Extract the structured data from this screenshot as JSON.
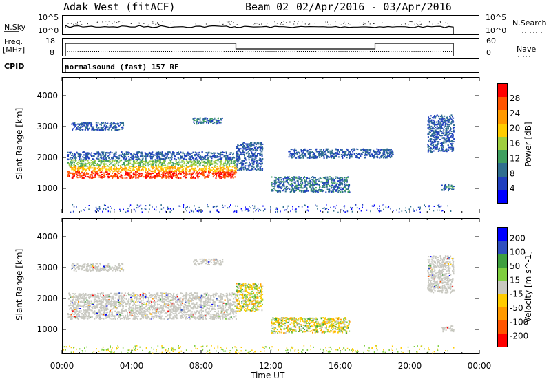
{
  "header": {
    "station": "Adak West (fitACF)",
    "beam": "Beam 02",
    "dates": "02/Apr/2016 - 03/Apr/2016"
  },
  "strip_labels": {
    "nsky": "N.Sky",
    "nsky_top": "10^5",
    "nsky_bottom": "10^0",
    "nsearch": "N.Search",
    "nsearch_top": "10^5",
    "nsearch_bottom": "10^0",
    "freq": "Freq.",
    "freq_unit": "[MHz]",
    "freq_top": "18",
    "freq_bottom": "8",
    "nave": "Nave",
    "nave_top": "60",
    "nave_bottom": "0",
    "cpid": "CPID",
    "cpid_text": "normalsound (fast) 157 RF"
  },
  "colors": {
    "power": [
      "#0000ff",
      "#1f3fbf",
      "#2f6f8f",
      "#3f9f5f",
      "#9fcf3f",
      "#ffcc00",
      "#ff9900",
      "#ff5500",
      "#ff0000"
    ],
    "velocity": [
      "#0000ff",
      "#2f4fbf",
      "#3f9f3f",
      "#7fcf3f",
      "#c8c8c0",
      "#ffcc00",
      "#ff9900",
      "#ff5500",
      "#ff0000"
    ]
  },
  "chart_data": [
    {
      "type": "heatmap",
      "name": "power",
      "ylabel": "Slant Range [km]",
      "yticks": [
        "1000",
        "2000",
        "3000",
        "4000"
      ],
      "ylim": [
        200,
        4600
      ],
      "xlim": [
        "00:00",
        "24:00"
      ],
      "colorbar_label": "Power [dB]",
      "colorbar_ticks": [
        "4",
        "8",
        "12",
        "16",
        "20",
        "24",
        "28"
      ],
      "clim": [
        0,
        32
      ],
      "regions": [
        {
          "t0": 0.3,
          "t1": 10.0,
          "r0": 1350,
          "r1": 2200,
          "level": "strong"
        },
        {
          "t0": 0.5,
          "t1": 3.5,
          "r0": 2900,
          "r1": 3150,
          "level": "weak"
        },
        {
          "t0": 7.5,
          "t1": 9.2,
          "r0": 3100,
          "r1": 3300,
          "level": "medium"
        },
        {
          "t0": 10.0,
          "t1": 11.5,
          "r0": 1600,
          "r1": 2500,
          "level": "weak"
        },
        {
          "t0": 12.0,
          "t1": 16.5,
          "r0": 900,
          "r1": 1400,
          "level": "medium"
        },
        {
          "t0": 13.0,
          "t1": 19.0,
          "r0": 2000,
          "r1": 2300,
          "level": "weak"
        },
        {
          "t0": 21.0,
          "t1": 22.5,
          "r0": 2200,
          "r1": 3400,
          "level": "weak"
        },
        {
          "t0": 21.8,
          "t1": 22.5,
          "r0": 950,
          "r1": 1150,
          "level": "medium"
        }
      ]
    },
    {
      "type": "heatmap",
      "name": "velocity",
      "ylabel": "Slant Range [km]",
      "yticks": [
        "1000",
        "2000",
        "3000",
        "4000"
      ],
      "ylim": [
        200,
        4600
      ],
      "xlim": [
        "00:00",
        "24:00"
      ],
      "xticks": [
        "00:00",
        "04:00",
        "08:00",
        "12:00",
        "16:00",
        "20:00",
        "00:00"
      ],
      "xlabel": "Time UT",
      "colorbar_label": "Velocity [m s^-1]",
      "colorbar_ticks": [
        "200",
        "100",
        "50",
        "15",
        "-15",
        "-50",
        "-100",
        "-200"
      ],
      "regions": [
        {
          "t0": 0.3,
          "t1": 10.0,
          "r0": 1350,
          "r1": 2200,
          "level": "ground"
        },
        {
          "t0": 0.5,
          "t1": 3.5,
          "r0": 2900,
          "r1": 3150,
          "level": "ground"
        },
        {
          "t0": 7.5,
          "t1": 9.2,
          "r0": 3100,
          "r1": 3300,
          "level": "ground"
        },
        {
          "t0": 10.0,
          "t1": 11.5,
          "r0": 1600,
          "r1": 2500,
          "level": "mixed"
        },
        {
          "t0": 12.0,
          "t1": 16.5,
          "r0": 900,
          "r1": 1400,
          "level": "mixed"
        },
        {
          "t0": 21.0,
          "t1": 22.5,
          "r0": 2200,
          "r1": 3400,
          "level": "ground"
        },
        {
          "t0": 21.8,
          "t1": 22.5,
          "r0": 950,
          "r1": 1150,
          "level": "ground"
        }
      ]
    }
  ]
}
